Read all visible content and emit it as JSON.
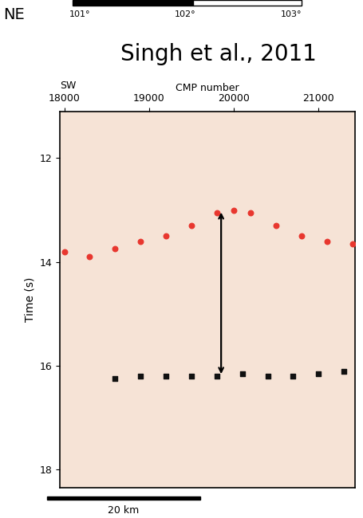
{
  "chart_data": {
    "type": "seismic_section",
    "title": "Singh et al., 2011",
    "header": {
      "label": "NE",
      "ticks": [
        "101°",
        "102°",
        "103°"
      ]
    },
    "direction_label": "SW",
    "x_label": "CMP number",
    "y_label": "Time (s)",
    "xlim": [
      17950,
      21430
    ],
    "xticks": [
      18000,
      19000,
      20000,
      21000
    ],
    "ylim": [
      18.35,
      11.1
    ],
    "yticks": [
      12,
      14,
      16,
      18
    ],
    "scale_bar": "20 km",
    "arrow": {
      "x": 19850,
      "y": [
        13.0,
        16.2
      ]
    },
    "series": [
      {
        "color": "#e8372f",
        "marker": "circle",
        "x": [
          18000,
          18300,
          18600,
          18900,
          19200,
          19500,
          19800,
          20000,
          20200,
          20500,
          20800,
          21100,
          21400
        ],
        "values": [
          13.8,
          13.9,
          13.75,
          13.6,
          13.5,
          13.3,
          13.05,
          13.0,
          13.05,
          13.3,
          13.5,
          13.6,
          13.65
        ]
      },
      {
        "color": "#111111",
        "marker": "square",
        "x": [
          18600,
          18900,
          19200,
          19500,
          19800,
          20100,
          20400,
          20700,
          21000,
          21300
        ],
        "values": [
          16.25,
          16.2,
          16.2,
          16.2,
          16.2,
          16.15,
          16.2,
          16.2,
          16.15,
          16.1
        ]
      }
    ]
  }
}
